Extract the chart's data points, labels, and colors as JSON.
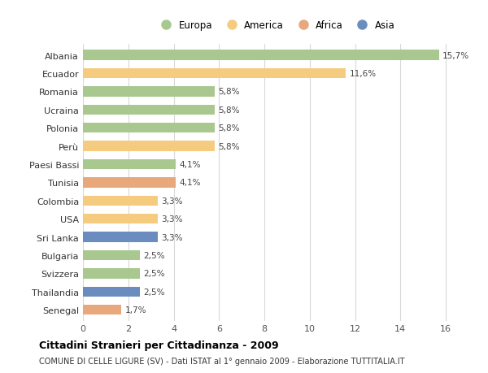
{
  "countries": [
    "Albania",
    "Ecuador",
    "Romania",
    "Ucraina",
    "Polonia",
    "Perù",
    "Paesi Bassi",
    "Tunisia",
    "Colombia",
    "USA",
    "Sri Lanka",
    "Bulgaria",
    "Svizzera",
    "Thailandia",
    "Senegal"
  ],
  "values": [
    15.7,
    11.6,
    5.8,
    5.8,
    5.8,
    5.8,
    4.1,
    4.1,
    3.3,
    3.3,
    3.3,
    2.5,
    2.5,
    2.5,
    1.7
  ],
  "labels": [
    "15,7%",
    "11,6%",
    "5,8%",
    "5,8%",
    "5,8%",
    "5,8%",
    "4,1%",
    "4,1%",
    "3,3%",
    "3,3%",
    "3,3%",
    "2,5%",
    "2,5%",
    "2,5%",
    "1,7%"
  ],
  "continents": [
    "Europa",
    "America",
    "Europa",
    "Europa",
    "Europa",
    "America",
    "Europa",
    "Africa",
    "America",
    "America",
    "Asia",
    "Europa",
    "Europa",
    "Asia",
    "Africa"
  ],
  "continent_colors": {
    "Europa": "#a8c890",
    "America": "#f5cc7f",
    "Africa": "#e8a87c",
    "Asia": "#6b8cbf"
  },
  "legend_order": [
    "Europa",
    "America",
    "Africa",
    "Asia"
  ],
  "xlim": [
    0,
    17
  ],
  "xticks": [
    0,
    2,
    4,
    6,
    8,
    10,
    12,
    14,
    16
  ],
  "title": "Cittadini Stranieri per Cittadinanza - 2009",
  "subtitle": "COMUNE DI CELLE LIGURE (SV) - Dati ISTAT al 1° gennaio 2009 - Elaborazione TUTTITALIA.IT",
  "bg_color": "#ffffff",
  "grid_color": "#d8d8d8",
  "bar_height": 0.55
}
